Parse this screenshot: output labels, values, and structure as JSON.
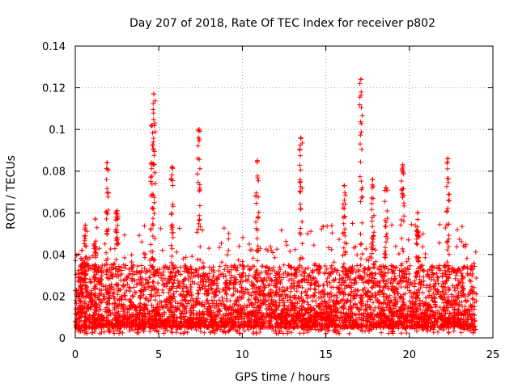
{
  "chart_data": {
    "type": "scatter",
    "title": "Day 207 of 2018, Rate Of TEC Index for receiver p802",
    "xlabel": "GPS time / hours",
    "ylabel": "ROTI / TECUs",
    "xlim": [
      0,
      25
    ],
    "ylim": [
      0,
      0.14
    ],
    "x_ticks": [
      0,
      5,
      10,
      15,
      20,
      25
    ],
    "x_tick_labels": [
      "0",
      "5",
      "10",
      "15",
      "20",
      "25"
    ],
    "y_ticks": [
      0,
      0.02,
      0.04,
      0.06,
      0.08,
      0.1,
      0.12,
      0.14
    ],
    "y_tick_labels": [
      "0",
      "0.02",
      "0.04",
      "0.06",
      "0.08",
      "0.1",
      "0.12",
      "0.14"
    ],
    "grid": true,
    "marker": "+",
    "marker_color": "#ff0000",
    "data_range": {
      "x_start": 0,
      "x_end": 24
    },
    "background_level": {
      "typical_min": 0.005,
      "typical_max": 0.035
    },
    "notable_peaks": [
      {
        "x": 0.4,
        "y": 0.042
      },
      {
        "x": 0.6,
        "y": 0.054
      },
      {
        "x": 1.2,
        "y": 0.057
      },
      {
        "x": 1.9,
        "y": 0.084
      },
      {
        "x": 2.5,
        "y": 0.061
      },
      {
        "x": 4.6,
        "y": 0.102
      },
      {
        "x": 4.7,
        "y": 0.117
      },
      {
        "x": 5.8,
        "y": 0.082
      },
      {
        "x": 7.4,
        "y": 0.1
      },
      {
        "x": 10.9,
        "y": 0.085
      },
      {
        "x": 13.5,
        "y": 0.096
      },
      {
        "x": 16.1,
        "y": 0.073
      },
      {
        "x": 17.1,
        "y": 0.124
      },
      {
        "x": 17.8,
        "y": 0.076
      },
      {
        "x": 18.6,
        "y": 0.072
      },
      {
        "x": 19.6,
        "y": 0.083
      },
      {
        "x": 20.5,
        "y": 0.06
      },
      {
        "x": 22.3,
        "y": 0.086
      }
    ]
  }
}
